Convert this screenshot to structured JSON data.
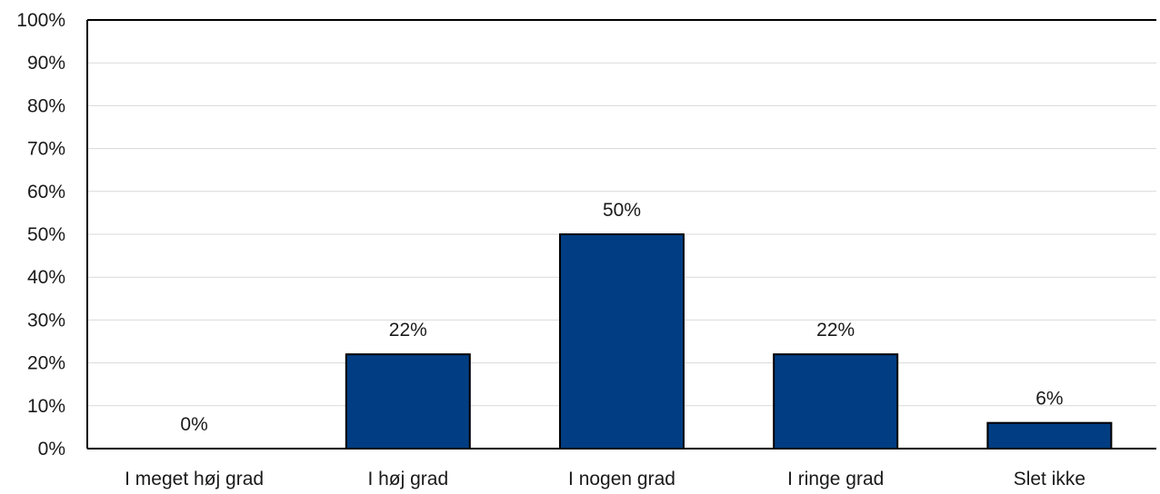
{
  "chart_data": {
    "type": "bar",
    "categories": [
      "I meget høj grad",
      "I høj grad",
      "I nogen grad",
      "I ringe grad",
      "Slet ikke"
    ],
    "values": [
      0,
      22,
      50,
      22,
      6
    ],
    "data_labels": [
      "0%",
      "22%",
      "50%",
      "22%",
      "6%"
    ],
    "ylim": [
      0,
      100
    ],
    "y_ticks": [
      0,
      10,
      20,
      30,
      40,
      50,
      60,
      70,
      80,
      90,
      100
    ],
    "y_tick_labels": [
      "0%",
      "10%",
      "20%",
      "30%",
      "40%",
      "50%",
      "60%",
      "70%",
      "80%",
      "90%",
      "100%"
    ],
    "grid": true,
    "bar_color": "#003d82"
  }
}
